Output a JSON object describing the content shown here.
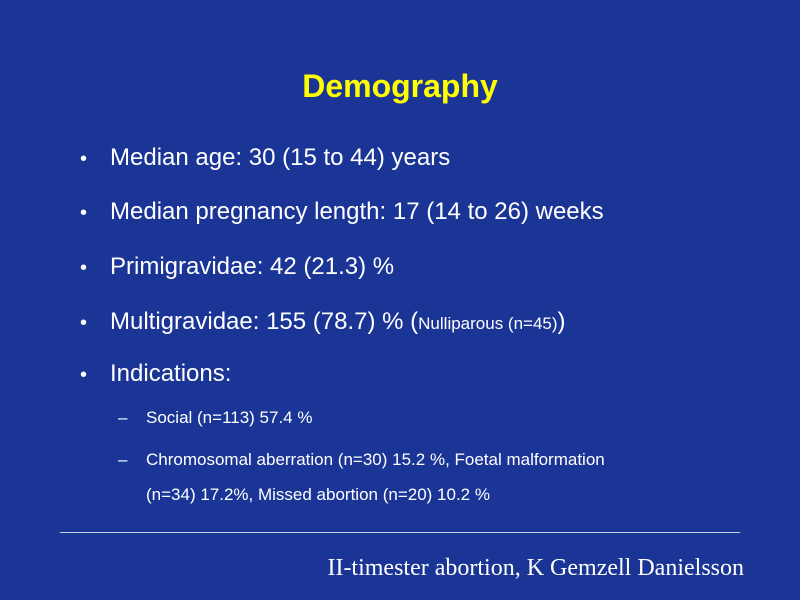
{
  "slide": {
    "title": "Demography",
    "bullets": [
      {
        "text": "Median age: 30 (15 to 44) years"
      },
      {
        "text": "Median pregnancy length: 17 (14 to 26) weeks"
      },
      {
        "text": "Primigravidae: 42 (21.3) %"
      },
      {
        "text": "Multigravidae: 155 (78.7) % (",
        "small": "Nulliparous (n=45)",
        "suffix": ")"
      },
      {
        "text": "Indications:"
      }
    ],
    "sub_bullets": [
      {
        "text": "Social (n=113) 57.4 %"
      },
      {
        "text": "Chromosomal aberration (n=30) 15.2 %, Foetal malformation",
        "continuation": "(n=34) 17.2%, Missed abortion (n=20) 10.2 %"
      }
    ],
    "footer": "II-timester abortion, K Gemzell Danielsson"
  },
  "colors": {
    "background": "#1a3596",
    "title": "#ffff00",
    "text": "#ffffff"
  }
}
